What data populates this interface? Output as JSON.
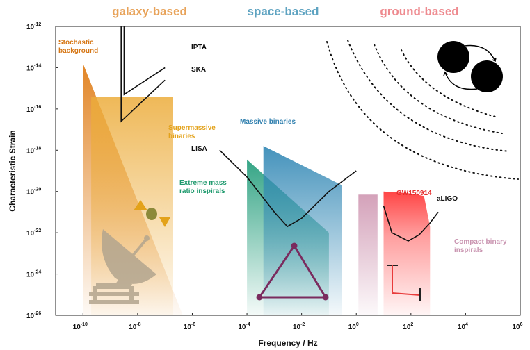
{
  "chart_data": {
    "type": "area",
    "title": "",
    "xlabel": "Frequency / Hz",
    "ylabel": "Characteristic Strain",
    "x_scale": "log",
    "y_scale": "log",
    "xlim": [
      1e-11,
      1000000.0
    ],
    "ylim": [
      1e-26,
      1e-12
    ],
    "grid": false,
    "x_ticks": [
      {
        "value": 1e-10,
        "base": "10",
        "exp": "-10"
      },
      {
        "value": 1e-08,
        "base": "10",
        "exp": "-8"
      },
      {
        "value": 1e-06,
        "base": "10",
        "exp": "-6"
      },
      {
        "value": 0.0001,
        "base": "10",
        "exp": "-4"
      },
      {
        "value": 0.01,
        "base": "10",
        "exp": "-2"
      },
      {
        "value": 1,
        "base": "10",
        "exp": "0"
      },
      {
        "value": 100.0,
        "base": "10",
        "exp": "2"
      },
      {
        "value": 10000.0,
        "base": "10",
        "exp": "4"
      },
      {
        "value": 1000000.0,
        "base": "10",
        "exp": "6"
      }
    ],
    "y_ticks": [
      {
        "value": 1e-12,
        "base": "10",
        "exp": "-12"
      },
      {
        "value": 1e-14,
        "base": "10",
        "exp": "-14"
      },
      {
        "value": 1e-16,
        "base": "10",
        "exp": "-16"
      },
      {
        "value": 1e-18,
        "base": "10",
        "exp": "-18"
      },
      {
        "value": 1e-20,
        "base": "10",
        "exp": "-20"
      },
      {
        "value": 1e-22,
        "base": "10",
        "exp": "-22"
      },
      {
        "value": 1e-24,
        "base": "10",
        "exp": "-24"
      },
      {
        "value": 1e-26,
        "base": "10",
        "exp": "-26"
      }
    ],
    "categories": [
      {
        "name": "galaxy-based",
        "color": "#e8a35a"
      },
      {
        "name": "space-based",
        "color": "#5ea3c1"
      },
      {
        "name": "ground-based",
        "color": "#ee8a8f"
      }
    ],
    "sources": [
      {
        "name": "Stochastic background",
        "label_lines": [
          "Stochastic",
          "background"
        ],
        "color": "#e07f1b",
        "points": [
          [
            1e-10,
            1.6e-14
          ],
          [
            4.5e-07,
            1e-26
          ],
          [
            1e-10,
            1e-26
          ]
        ]
      },
      {
        "name": "Supermassive binaries",
        "label_lines": [
          "Supermassive",
          "binaries"
        ],
        "color": "#ecac3a",
        "points": [
          [
            2e-10,
            4e-16
          ],
          [
            2e-07,
            4e-16
          ],
          [
            2e-07,
            1e-26
          ],
          [
            2e-10,
            1e-26
          ]
        ]
      },
      {
        "name": "Extreme mass ratio inspirals",
        "label_lines": [
          "Extreme mass",
          "ratio inspirals"
        ],
        "color": "#2aa07f",
        "points": [
          [
            0.0001,
            3.5e-19
          ],
          [
            0.1,
            1e-22
          ],
          [
            0.1,
            1e-26
          ],
          [
            0.0001,
            1e-26
          ]
        ]
      },
      {
        "name": "Massive binaries",
        "label_lines": [
          "Massive binaries"
        ],
        "color": "#2f86b4",
        "points": [
          [
            0.0004,
            1.6e-18
          ],
          [
            0.3,
            2e-20
          ],
          [
            0.3,
            1e-26
          ],
          [
            0.0004,
            1e-26
          ]
        ]
      },
      {
        "name": "Compact binary inspirals",
        "label_lines": [
          "Compact binary",
          "inspirals"
        ],
        "color": "#c98aa8",
        "points": [
          [
            1.2,
            7e-21
          ],
          [
            6,
            7e-21
          ],
          [
            6,
            1e-26
          ],
          [
            1.2,
            1e-26
          ]
        ]
      },
      {
        "name": "GW150914",
        "label_lines": [
          "GW150914"
        ],
        "color": "#ff3b3b",
        "points": [
          [
            10,
            1e-20
          ],
          [
            100,
            8e-21
          ],
          [
            300,
            6e-21
          ],
          [
            500,
            2e-22
          ],
          [
            500,
            1e-26
          ],
          [
            10,
            1e-26
          ]
        ]
      }
    ],
    "curves": [
      {
        "name": "IPTA",
        "color": "#111",
        "points": [
          [
            3.2e-09,
            1e-12
          ],
          [
            3.2e-09,
            5e-16
          ],
          [
            1e-07,
            1e-14
          ]
        ]
      },
      {
        "name": "SKA",
        "color": "#111",
        "points": [
          [
            2.5e-09,
            1e-12
          ],
          [
            2.5e-09,
            2.5e-17
          ],
          [
            1e-07,
            2.5e-15
          ]
        ]
      },
      {
        "name": "LISA",
        "color": "#111",
        "points": [
          [
            1e-05,
            1e-18
          ],
          [
            0.0001,
            5e-20
          ],
          [
            0.001,
            1e-21
          ],
          [
            0.003,
            2e-22
          ],
          [
            0.01,
            5e-22
          ],
          [
            0.1,
            1e-20
          ],
          [
            1,
            1e-19
          ]
        ]
      },
      {
        "name": "aLIGO",
        "color": "#111",
        "points": [
          [
            10,
            2e-21
          ],
          [
            20,
            1e-22
          ],
          [
            80,
            4e-23
          ],
          [
            200,
            8e-23
          ],
          [
            500,
            3e-22
          ],
          [
            1000,
            1e-21
          ]
        ]
      }
    ]
  }
}
